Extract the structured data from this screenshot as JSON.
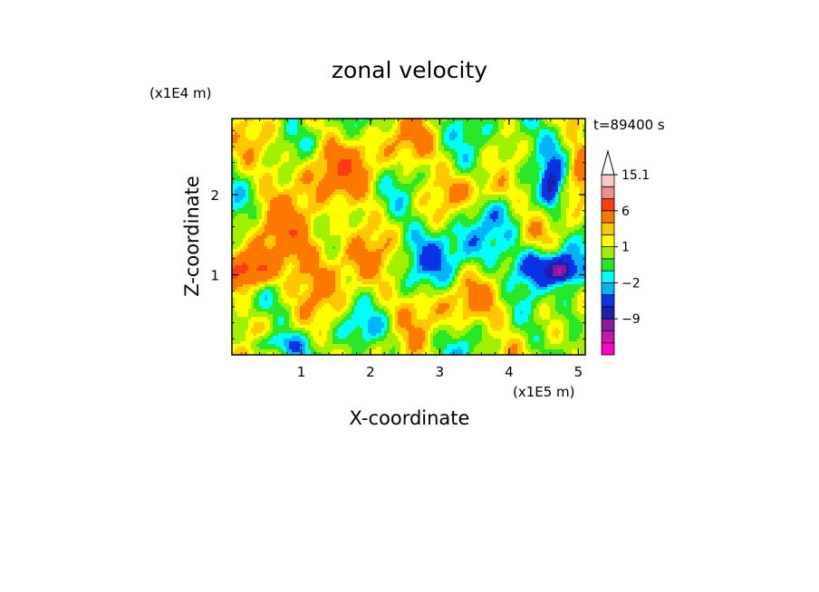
{
  "chart_data": {
    "type": "heatmap",
    "title": "zonal velocity",
    "xlabel": "X-coordinate",
    "ylabel": "Z-coordinate",
    "x_unit": "(x1E5 m)",
    "y_unit": "(x1E4 m)",
    "time_label": "t=89400 s",
    "xlim": [
      0,
      5.1
    ],
    "ylim": [
      0,
      2.95
    ],
    "x_ticks": [
      1,
      2,
      3,
      4,
      5
    ],
    "x_tick_labels": [
      "1",
      "2",
      "3",
      "4",
      "5"
    ],
    "y_ticks": [
      1,
      2
    ],
    "y_tick_labels": [
      "1",
      "2"
    ],
    "colorbar": {
      "levels": [
        -15,
        -12,
        -9,
        -6,
        -3,
        -2,
        -1,
        0,
        1,
        2,
        3,
        6,
        9,
        12,
        15.1
      ],
      "colors": [
        "#ff00c8",
        "#c814b4",
        "#8c1aa0",
        "#1e1eaa",
        "#0a32e6",
        "#00b4ff",
        "#00ffff",
        "#28e628",
        "#a0f000",
        "#ffff00",
        "#ffc800",
        "#ff7800",
        "#ff3c14",
        "#f08c8c",
        "#ffc8c8"
      ],
      "tick_labels": [
        {
          "value": 15.1,
          "label": "15.1"
        },
        {
          "value": 6,
          "label": "6"
        },
        {
          "value": 1,
          "label": "1"
        },
        {
          "value": -2,
          "label": "−2"
        },
        {
          "value": -9,
          "label": "−9"
        }
      ],
      "extend": "max"
    },
    "features": [
      {
        "x": 0.3,
        "z": 1.05,
        "sx": 0.35,
        "sz": 0.22,
        "v": 7
      },
      {
        "x": 0.9,
        "z": 1.4,
        "sx": 0.6,
        "sz": 0.5,
        "v": 3
      },
      {
        "x": 1.7,
        "z": 1.2,
        "sx": 0.5,
        "sz": 0.6,
        "v": 2
      },
      {
        "x": 1.4,
        "z": 2.3,
        "sx": 0.8,
        "sz": 0.35,
        "v": 3
      },
      {
        "x": 3.6,
        "z": 2.05,
        "sx": 0.45,
        "sz": 0.18,
        "v": 2.5
      },
      {
        "x": 3.2,
        "z": 1.3,
        "sx": 0.8,
        "sz": 0.4,
        "v": -2.5
      },
      {
        "x": 4.5,
        "z": 1.1,
        "sx": 0.35,
        "sz": 0.22,
        "v": -6
      },
      {
        "x": 4.75,
        "z": 1.05,
        "sx": 0.15,
        "sz": 0.12,
        "v": -10
      },
      {
        "x": 3.3,
        "z": 0.6,
        "sx": 1.0,
        "sz": 0.3,
        "v": 2.0
      },
      {
        "x": 4.9,
        "z": 0.5,
        "sx": 0.2,
        "sz": 0.4,
        "v": -3
      },
      {
        "x": 0.6,
        "z": 0.15,
        "sx": 0.4,
        "sz": 0.12,
        "v": -3
      },
      {
        "x": 4.2,
        "z": 2.6,
        "sx": 0.8,
        "sz": 0.4,
        "v": -1.5
      },
      {
        "x": 5.0,
        "z": 2.3,
        "sx": 0.2,
        "sz": 0.4,
        "v": 4
      },
      {
        "x": 2.7,
        "z": 2.6,
        "sx": 0.6,
        "sz": 0.3,
        "v": 2
      },
      {
        "x": 2.0,
        "z": 0.35,
        "sx": 0.5,
        "sz": 0.2,
        "v": -1.2
      },
      {
        "x": 4.6,
        "z": 2.1,
        "sx": 0.12,
        "sz": 0.25,
        "v": -6
      }
    ]
  }
}
